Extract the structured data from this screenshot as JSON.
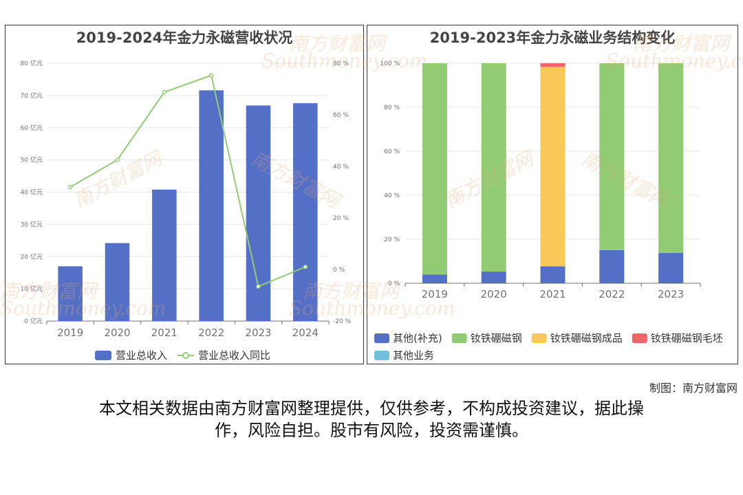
{
  "watermark": {
    "cn": "南方财富网",
    "en": "Southmoney.com"
  },
  "chart_data": [
    {
      "type": "bar",
      "title": "2019-2024年金力永磁营收状况",
      "categories": [
        "2019",
        "2020",
        "2021",
        "2022",
        "2023",
        "2024"
      ],
      "series": [
        {
          "name": "营业总收入",
          "type": "bar",
          "axis": "left",
          "color": "#5470c6",
          "values": [
            17.0,
            24.2,
            40.8,
            71.6,
            66.9,
            67.6
          ]
        },
        {
          "name": "营业总收入同比",
          "type": "line",
          "axis": "right",
          "color": "#91cc75",
          "values": [
            32.0,
            42.5,
            68.8,
            75.3,
            -6.6,
            1.0
          ]
        }
      ],
      "y_left": {
        "min": 0,
        "max": 80,
        "step": 10,
        "unit": " 亿元"
      },
      "y_right": {
        "min": -20,
        "max": 80,
        "step": 20,
        "unit": " %"
      },
      "legend": "bottom"
    },
    {
      "type": "bar",
      "stacked": true,
      "title": "2019-2023年金力永磁业务结构变化",
      "categories": [
        "2019",
        "2020",
        "2021",
        "2022",
        "2023"
      ],
      "series": [
        {
          "name": "其他(补充)",
          "color": "#5470c6",
          "values": [
            4.0,
            5.3,
            7.7,
            15.0,
            13.8
          ]
        },
        {
          "name": "钕铁硼磁钢",
          "color": "#91cc75",
          "values": [
            96.0,
            94.7,
            0,
            85.0,
            86.2
          ]
        },
        {
          "name": "钕铁硼磁钢成品",
          "color": "#fac858",
          "values": [
            0,
            0,
            90.6,
            0,
            0
          ]
        },
        {
          "name": "钕铁硼磁钢毛坯",
          "color": "#ee6666",
          "values": [
            0,
            0,
            1.7,
            0,
            0
          ]
        },
        {
          "name": "其他业务",
          "color": "#73c0de",
          "values": [
            0,
            0,
            0,
            0,
            0
          ]
        }
      ],
      "y": {
        "min": 0,
        "max": 100,
        "step": 20,
        "unit": " %"
      },
      "legend": "bottom"
    }
  ],
  "footer": {
    "credit": "制图：南方财富网",
    "disclaimer_line1": "本文相关数据由南方财富网整理提供，仅供参考，不构成投资建议，据此操",
    "disclaimer_line2": "作，风险自担。股市有风险，投资需谨慎。"
  }
}
